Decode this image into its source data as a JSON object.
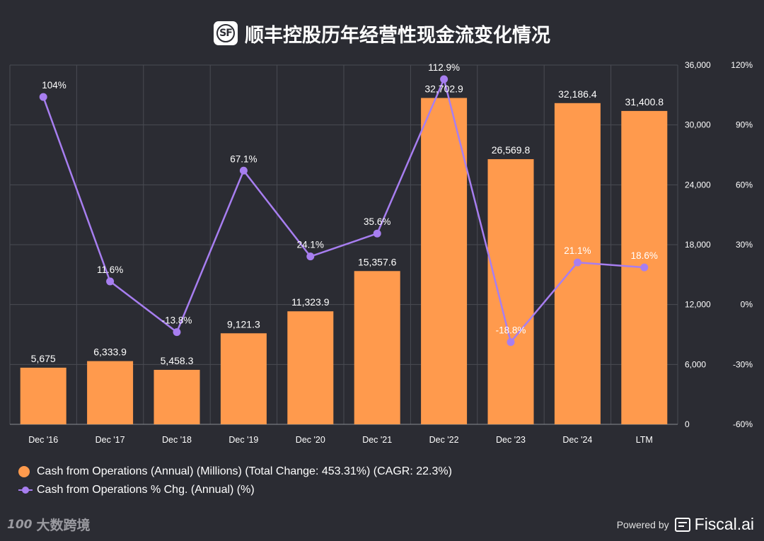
{
  "header": {
    "logo_text": "SF",
    "title": "顺丰控股历年经营性现金流变化情况"
  },
  "chart_data": {
    "type": "bar+line",
    "categories": [
      "Dec '16",
      "Dec '17",
      "Dec '18",
      "Dec '19",
      "Dec '20",
      "Dec '21",
      "Dec '22",
      "Dec '23",
      "Dec '24",
      "LTM"
    ],
    "series": [
      {
        "name": "Cash from Operations (Annual) (Millions) (Total Change: 453.31%) (CAGR: 22.3%)",
        "type": "bar",
        "axis": "left",
        "color": "#ff9a4d",
        "values": [
          5675,
          6333.9,
          5458.3,
          9121.3,
          11323.9,
          15357.6,
          32702.9,
          26569.8,
          32186.4,
          31400.8
        ],
        "labels": [
          "5,675",
          "6,333.9",
          "5,458.3",
          "9,121.3",
          "11,323.9",
          "15,357.6",
          "32,702.9",
          "26,569.8",
          "32,186.4",
          "31,400.8"
        ]
      },
      {
        "name": "Cash from Operations % Chg. (Annual) (%)",
        "type": "line",
        "axis": "right",
        "color": "#a77ef0",
        "values": [
          104,
          11.6,
          -13.8,
          67.1,
          24.1,
          35.6,
          112.9,
          -18.8,
          21.1,
          18.6
        ],
        "labels": [
          "104%",
          "11.6%",
          "-13.8%",
          "67.1%",
          "24.1%",
          "35.6%",
          "112.9%",
          "-18.8%",
          "21.1%",
          "18.6%"
        ]
      }
    ],
    "y_left": {
      "range": [
        0,
        36000
      ],
      "ticks": [
        0,
        6000,
        12000,
        18000,
        24000,
        30000,
        36000
      ],
      "tick_labels": [
        "0",
        "6,000",
        "12,000",
        "18,000",
        "24,000",
        "30,000",
        "36,000"
      ]
    },
    "y_right": {
      "range": [
        -60,
        120
      ],
      "ticks": [
        -60,
        -30,
        0,
        30,
        60,
        90,
        120
      ],
      "tick_labels": [
        "-60%",
        "-30%",
        "0%",
        "30%",
        "60%",
        "90%",
        "120%"
      ]
    },
    "grid": true,
    "legend_position": "bottom-left"
  },
  "colors": {
    "background": "#2b2c33",
    "bar": "#ff9a4d",
    "line": "#a77ef0",
    "grid": "#4a4b53"
  },
  "legend": {
    "bar_label": "Cash from Operations (Annual) (Millions) (Total Change: 453.31%) (CAGR: 22.3%)",
    "line_label": "Cash from Operations % Chg. (Annual) (%)"
  },
  "footer": {
    "watermark_logo": "100",
    "watermark_text": "大数跨境",
    "powered_by": "Powered by",
    "brand": "Fiscal.ai"
  }
}
